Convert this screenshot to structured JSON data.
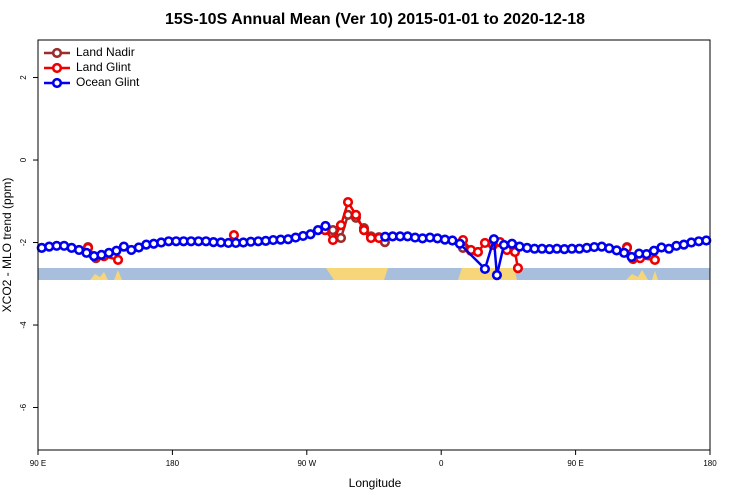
{
  "chart_data": {
    "type": "line",
    "title": "15S-10S Annual Mean (Ver 10)   2015-01-01 to 2020-12-18",
    "x_label": "Longitude",
    "y_label": "XCO2 - MLO trend (ppm)",
    "xlim": [
      90,
      540
    ],
    "ylim": [
      -7.03,
      2.91
    ],
    "xticks": [
      {
        "value": 90,
        "label": "90 E"
      },
      180,
      {
        "value": 270,
        "label": "90 W"
      },
      {
        "value": 360,
        "label": "0"
      },
      {
        "value": 450,
        "label": "90 E"
      },
      {
        "value": 540,
        "label": "180"
      }
    ],
    "yticks": [
      -6,
      -4,
      -2,
      0,
      2
    ],
    "legend": "top-left",
    "series": [
      {
        "name": "Land Nadir",
        "color": "#9b2d2d",
        "x": [
          123.5,
          128.8,
          200,
          287.5,
          292.9,
          297.6,
          302.9,
          308.3,
          313.0,
          318.3,
          322.3,
          350,
          374.6,
          379.9,
          450,
          484.4,
          488.4
        ],
        "values": [
          -2.11,
          -2.38,
          null,
          -1.7,
          -1.89,
          -1.33,
          -1.4,
          -1.65,
          -1.85,
          -1.87,
          -1.99,
          null,
          -2.13,
          -2.2,
          null,
          -2.11,
          -2.4
        ]
      },
      {
        "name": "Land Glint",
        "color": "#ee0000",
        "x": [
          123.5,
          128.8,
          134.2,
          143.6,
          180,
          221.2,
          250,
          282.2,
          287.5,
          292.9,
          297.6,
          302.9,
          308.3,
          313.0,
          318.3,
          350,
          374.6,
          379.9,
          384.6,
          389.3,
          394.7,
          399.4,
          404.0,
          409.4,
          411.4,
          450,
          484.4,
          488.4,
          493.2,
          503.1
        ],
        "values": [
          -2.13,
          -2.35,
          -2.33,
          -2.42,
          null,
          -1.82,
          null,
          -1.7,
          -1.94,
          -1.58,
          -1.02,
          -1.33,
          -1.7,
          -1.89,
          -1.89,
          null,
          -1.94,
          -2.18,
          -2.23,
          -2.01,
          -2.06,
          -1.99,
          -2.18,
          -2.23,
          -2.62,
          null,
          -2.13,
          -2.38,
          -2.38,
          -2.42
        ]
      },
      {
        "name": "Ocean Glint",
        "color": "#0000ee",
        "x": [
          92.5,
          97.5,
          102.5,
          107.5,
          112.5,
          117.5,
          122.5,
          127.5,
          132.5,
          137.5,
          142.5,
          147.5,
          152.5,
          157.5,
          162.5,
          167.5,
          172.5,
          177.5,
          182.5,
          187.5,
          192.5,
          197.5,
          202.5,
          207.5,
          212.5,
          217.5,
          222.5,
          227.5,
          232.5,
          237.5,
          242.5,
          247.5,
          252.5,
          257.5,
          262.5,
          267.5,
          272.5,
          277.5,
          282.5,
          300,
          322.5,
          327.5,
          332.5,
          337.5,
          342.5,
          347.5,
          352.5,
          357.5,
          362.5,
          367.5,
          372.5,
          389.3,
          395.3,
          397.3,
          402.0,
          407.4,
          412.5,
          417.5,
          422.5,
          427.5,
          432.5,
          437.5,
          442.5,
          447.5,
          452.5,
          457.5,
          462.5,
          467.5,
          472.5,
          477.5,
          482.5,
          487.5,
          492.5,
          497.5,
          502.5,
          507.5,
          512.5,
          517.5,
          522.5,
          527.5,
          532.5,
          537.5
        ],
        "values": [
          -2.13,
          -2.1,
          -2.08,
          -2.08,
          -2.13,
          -2.18,
          -2.25,
          -2.33,
          -2.3,
          -2.25,
          -2.2,
          -2.1,
          -2.18,
          -2.12,
          -2.05,
          -2.03,
          -2.0,
          -1.97,
          -1.97,
          -1.97,
          -1.97,
          -1.97,
          -1.97,
          -1.99,
          -2.0,
          -2.01,
          -2.01,
          -2.0,
          -1.98,
          -1.97,
          -1.96,
          -1.94,
          -1.93,
          -1.92,
          -1.88,
          -1.84,
          -1.8,
          -1.7,
          -1.6,
          null,
          -1.86,
          -1.85,
          -1.85,
          -1.85,
          -1.88,
          -1.9,
          -1.88,
          -1.9,
          -1.93,
          -1.95,
          -2.03,
          -2.64,
          -1.92,
          -2.79,
          -2.06,
          -2.03,
          -2.1,
          -2.13,
          -2.15,
          -2.15,
          -2.16,
          -2.15,
          -2.16,
          -2.15,
          -2.15,
          -2.13,
          -2.11,
          -2.1,
          -2.14,
          -2.19,
          -2.25,
          -2.35,
          -2.27,
          -2.28,
          -2.2,
          -2.12,
          -2.15,
          -2.08,
          -2.05,
          -2.0,
          -1.97,
          -1.95
        ]
      }
    ]
  }
}
